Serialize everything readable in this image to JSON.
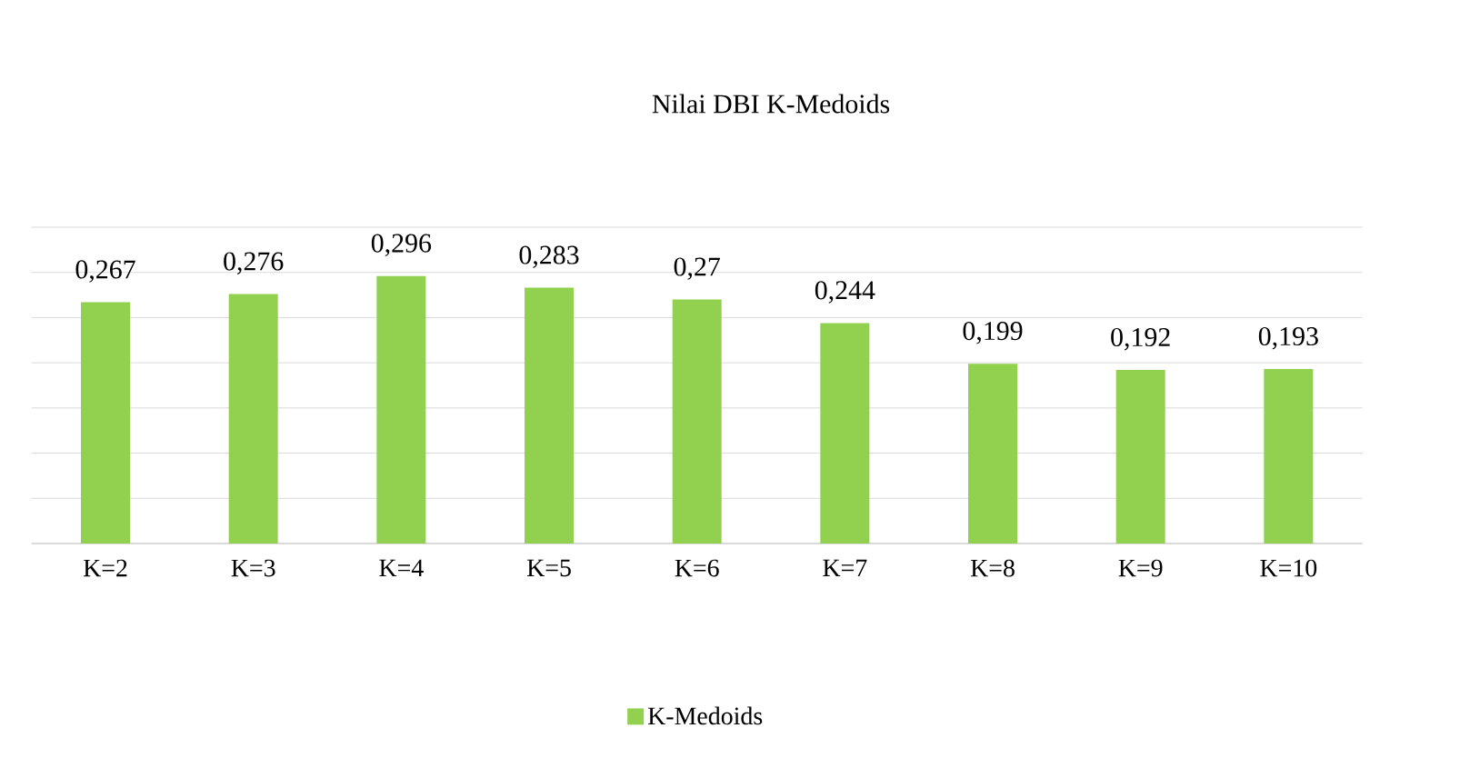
{
  "chart_data": {
    "type": "bar",
    "title": "Nilai DBI K-Medoids",
    "categories": [
      "K=2",
      "K=3",
      "K=4",
      "K=5",
      "K=6",
      "K=7",
      "K=8",
      "K=9",
      "K=10"
    ],
    "series": [
      {
        "name": "K-Medoids",
        "color": "#92d050",
        "values": [
          0.267,
          0.276,
          0.296,
          0.283,
          0.27,
          0.244,
          0.199,
          0.192,
          0.193
        ],
        "value_labels": [
          "0,267",
          "0,276",
          "0,296",
          "0,283",
          "0,27",
          "0,244",
          "0,199",
          "0,192",
          "0,193"
        ]
      }
    ],
    "ylim": [
      0,
      0.35
    ],
    "yticks": [
      0,
      0.05,
      0.1,
      0.15,
      0.2,
      0.25,
      0.3,
      0.35
    ],
    "tick_labels": "x",
    "grid": "y",
    "legend": "bottom"
  }
}
